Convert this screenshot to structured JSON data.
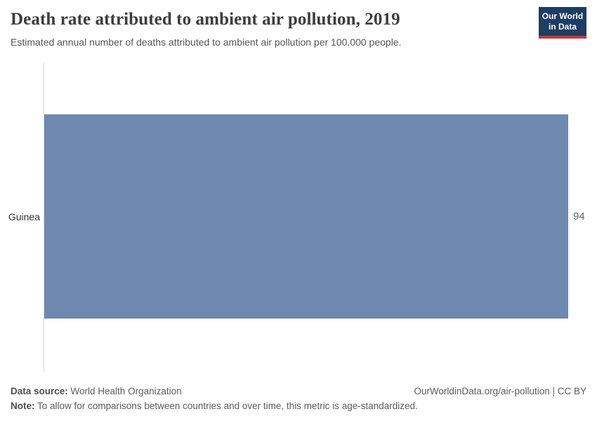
{
  "header": {
    "title": "Death rate attributed to ambient air pollution, 2019",
    "subtitle": "Estimated annual number of deaths attributed to ambient air pollution per 100,000 people.",
    "logo": {
      "text": "Our World\nin Data",
      "bg_color": "#1d3d63",
      "accent_color": "#c5393c"
    }
  },
  "chart_data": {
    "type": "bar",
    "orientation": "horizontal",
    "categories": [
      "Guinea"
    ],
    "values": [
      94
    ],
    "value_labels": [
      "94"
    ],
    "title": "Death rate attributed to ambient air pollution, 2019",
    "xlabel": "",
    "ylabel": "",
    "xlim": [
      0,
      94
    ],
    "grid": false,
    "legend": "none",
    "bar_color": "#6f88b0",
    "axis_line_color": "#d9d9d9"
  },
  "footer": {
    "datasource_label": "Data source:",
    "datasource_value": " World Health Organization",
    "license": "OurWorldinData.org/air-pollution | CC BY",
    "note_label": "Note:",
    "note_value": " To allow for comparisons between countries and over time, this metric is age-standardized."
  }
}
